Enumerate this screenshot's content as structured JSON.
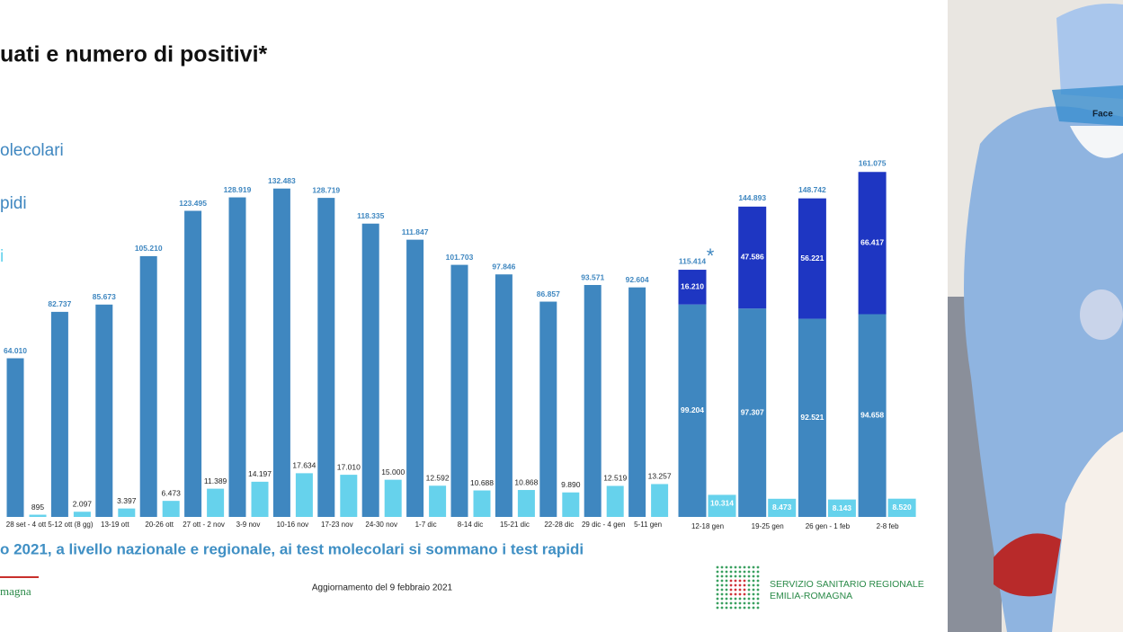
{
  "page": {
    "title": "uati e numero di positivi*",
    "note": "o 2021, a livello nazionale e regionale, ai test molecolari si sommano i test rapidi",
    "update": "Aggiornamento del 9 febbraio 2021",
    "left_logo": "magna",
    "logo_line1": "SERVIZIO SANITARIO REGIONALE",
    "logo_line2": "EMILIA-ROMAGNA",
    "photo_text": "Face"
  },
  "chart_data": [
    {
      "type": "bar",
      "ylim": [
        0,
        140000
      ],
      "categories": [
        "28 set - 4 ott",
        "5-12 ott (8 gg)",
        "13-19 ott",
        "20-26 ott",
        "27 ott - 2 nov",
        "3-9 nov",
        "10-16 nov",
        "17-23 nov",
        "24-30 nov",
        "1-7 dic",
        "8-14 dic",
        "15-21 dic",
        "22-28 dic",
        "29 dic - 4 gen",
        "5-11 gen"
      ],
      "series": [
        {
          "color": "#3f87c0",
          "values": [
            64010,
            82737,
            85673,
            105210,
            123495,
            128919,
            132483,
            128719,
            118335,
            111847,
            101703,
            97846,
            86857,
            93571,
            92604
          ],
          "value_labels": [
            "64.010",
            "82.737",
            "85.673",
            "105.210",
            "123.495",
            "128.919",
            "132.483",
            "128.719",
            "118.335",
            "111.847",
            "101.703",
            "97.846",
            "86.857",
            "93.571",
            "92.604"
          ]
        },
        {
          "color": "#66d2ec",
          "values": [
            895,
            2097,
            3397,
            6473,
            11389,
            14197,
            17634,
            17010,
            15000,
            12592,
            10688,
            10868,
            9890,
            12519,
            13257
          ],
          "value_labels": [
            "895",
            "2.097",
            "3.397",
            "6.473",
            "11.389",
            "14.197",
            "17.634",
            "17.010",
            "15.000",
            "12.592",
            "10.688",
            "10.868",
            "9.890",
            "12.519",
            "13.257"
          ]
        }
      ]
    },
    {
      "type": "stacked-bar",
      "ylim": [
        0,
        170000
      ],
      "annotation": "*",
      "categories": [
        "12-18 gen",
        "19-25 gen",
        "26 gen - 1 feb",
        "2-8 feb"
      ],
      "series": [
        {
          "name": "olecolari",
          "color": "#3f87c0",
          "values": [
            99204,
            97307,
            92521,
            94658
          ],
          "value_labels": [
            "99.204",
            "97.307",
            "92.521",
            "94.658"
          ]
        },
        {
          "name": "pidi",
          "color": "#1e36c2",
          "values": [
            16210,
            47586,
            56221,
            66417
          ],
          "value_labels": [
            "16.210",
            "47.586",
            "56.221",
            "66.417"
          ]
        },
        {
          "name": "i",
          "color": "#66d2ec",
          "values": [
            10314,
            8473,
            8143,
            8520
          ],
          "value_labels": [
            "10.314",
            "8.473",
            "8.143",
            "8.520"
          ]
        }
      ],
      "totals": {
        "values": [
          115414,
          144893,
          148742,
          161075
        ],
        "value_labels": [
          "115.414",
          "144.893",
          "148.742",
          "161.075"
        ]
      }
    }
  ]
}
